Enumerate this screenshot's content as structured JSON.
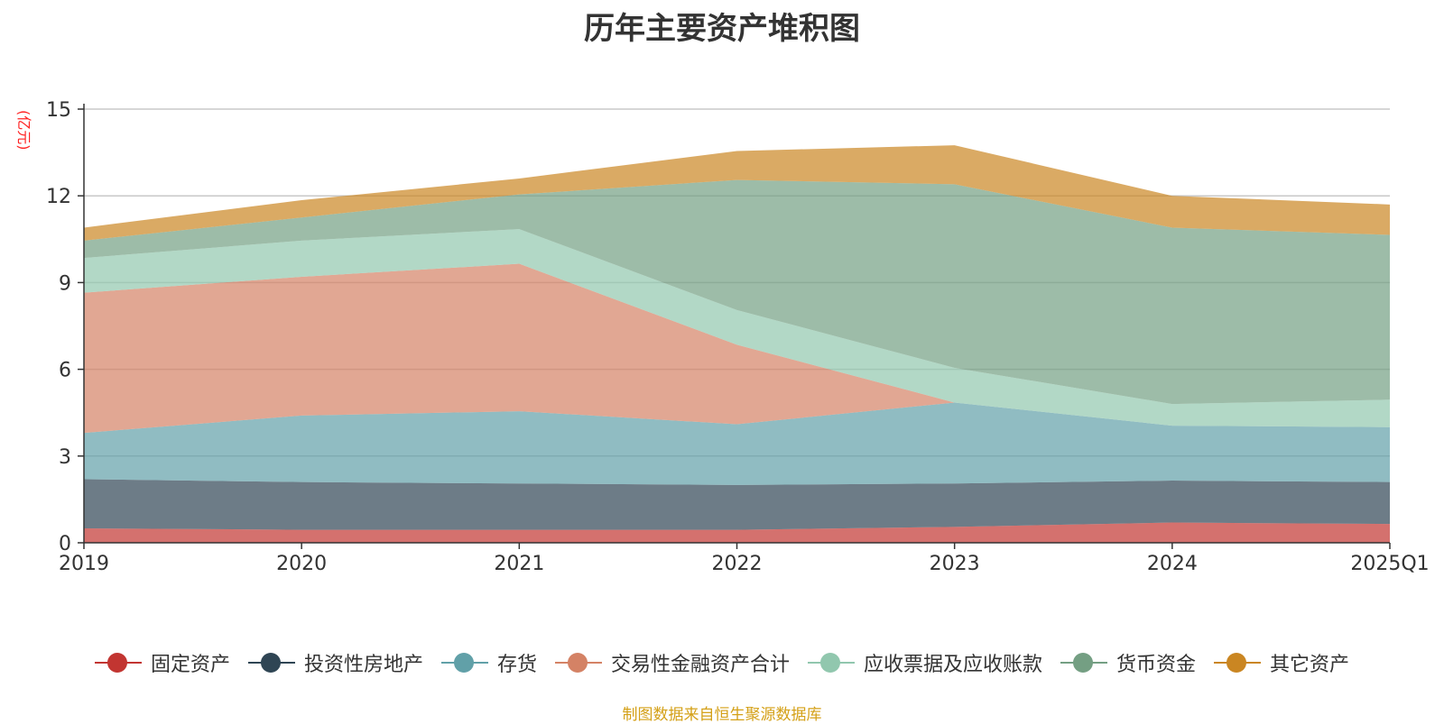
{
  "chart_data": {
    "type": "area",
    "stacked": true,
    "title": "历年主要资产堆积图",
    "unit_label": "(亿元)",
    "categories": [
      "2019",
      "2020",
      "2021",
      "2022",
      "2023",
      "2024",
      "2025Q1"
    ],
    "ylim": [
      0,
      15
    ],
    "yticks": [
      0,
      3,
      6,
      9,
      12,
      15
    ],
    "grid": true,
    "legend_position": "bottom",
    "series": [
      {
        "name": "固定资产",
        "color": "#c23531",
        "values": [
          0.5,
          0.45,
          0.45,
          0.45,
          0.55,
          0.7,
          0.65
        ]
      },
      {
        "name": "投资性房地产",
        "color": "#2f4554",
        "values": [
          1.7,
          1.65,
          1.6,
          1.55,
          1.5,
          1.45,
          1.45
        ]
      },
      {
        "name": "存货",
        "color": "#61a0a8",
        "values": [
          1.6,
          2.3,
          2.5,
          2.1,
          2.8,
          1.9,
          1.9
        ]
      },
      {
        "name": "交易性金融资产合计",
        "color": "#d48265",
        "values": [
          4.85,
          4.8,
          5.1,
          2.75,
          0.0,
          0.0,
          0.0
        ]
      },
      {
        "name": "应收票据及应收账款",
        "color": "#91c7ae",
        "values": [
          1.2,
          1.25,
          1.2,
          1.2,
          1.2,
          0.75,
          0.95
        ]
      },
      {
        "name": "货币资金",
        "color": "#749f83",
        "values": [
          0.6,
          0.8,
          1.2,
          4.5,
          6.35,
          6.1,
          5.7
        ]
      },
      {
        "name": "其它资产",
        "color": "#ca8622",
        "values": [
          0.45,
          0.6,
          0.55,
          1.0,
          1.35,
          1.1,
          1.05
        ]
      }
    ]
  },
  "source_note": "制图数据来自恒生聚源数据库"
}
